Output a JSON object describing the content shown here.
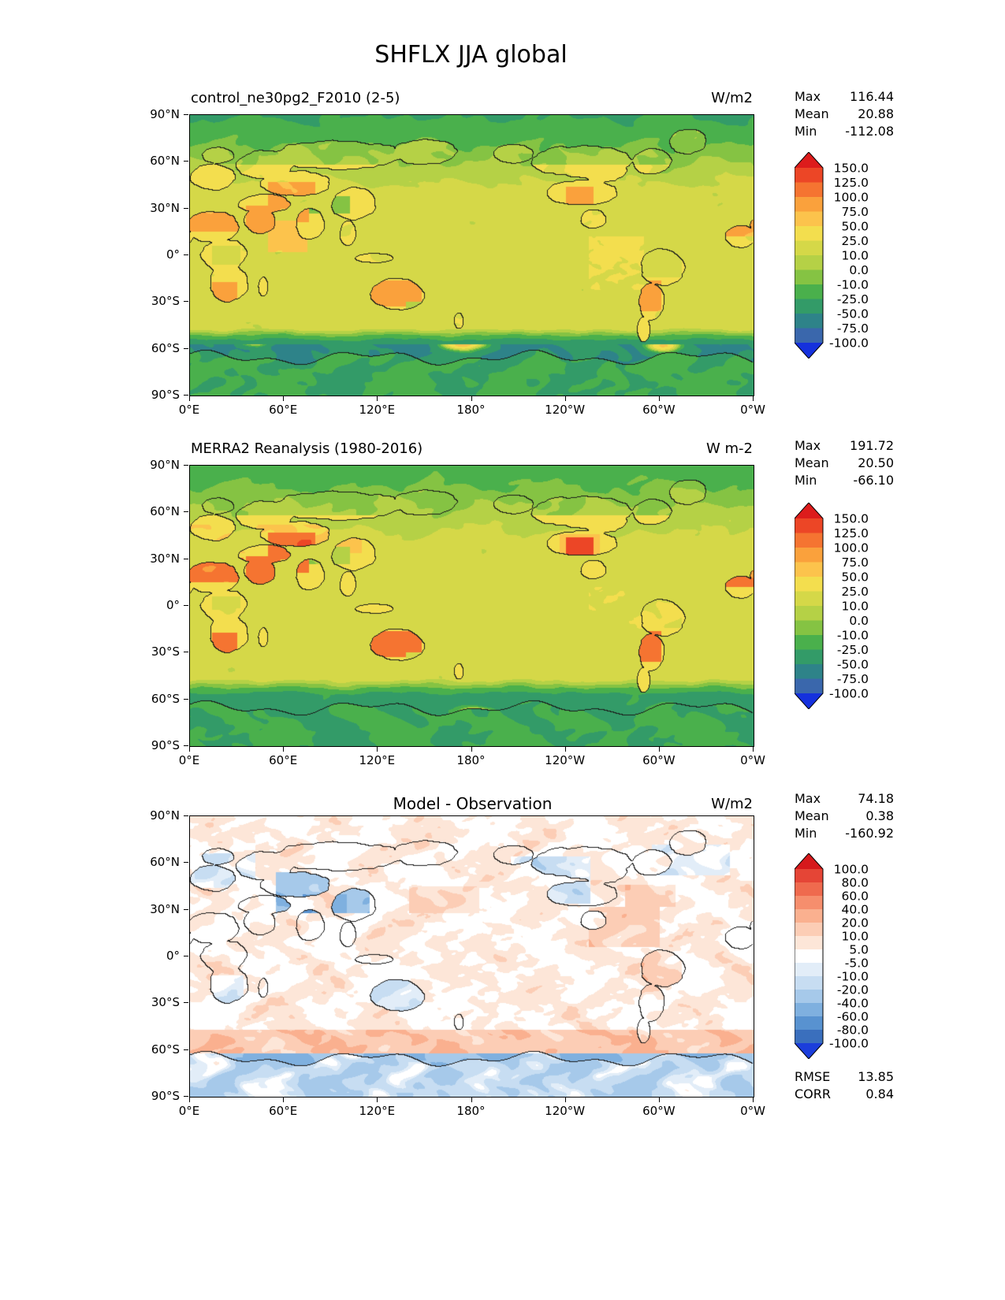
{
  "figure_title": "SHFLX JJA global",
  "axes": {
    "x_ticks": [
      "0°E",
      "60°E",
      "120°E",
      "180°",
      "120°W",
      "60°W",
      "0°W"
    ],
    "y_ticks": [
      "90°N",
      "60°N",
      "30°N",
      "0°",
      "30°S",
      "60°S",
      "90°S"
    ]
  },
  "panels": [
    {
      "id": "model",
      "title": "control_ne30pg2_F2010 (2-5)",
      "units": "W/m2",
      "stats": [
        {
          "label": "Max",
          "value": "116.44"
        },
        {
          "label": "Mean",
          "value": "20.88"
        },
        {
          "label": "Min",
          "value": "-112.08"
        }
      ],
      "colorbar": {
        "tick_labels": [
          "150.0",
          "125.0",
          "100.0",
          "75.0",
          "50.0",
          "25.0",
          "10.0",
          "0.0",
          "-10.0",
          "-25.0",
          "-50.0",
          "-75.0",
          "-100.0"
        ],
        "colors": [
          "#dd1c1c",
          "#ec4626",
          "#f57431",
          "#faa13c",
          "#fcc34c",
          "#f3de4e",
          "#d5d848",
          "#b5d146",
          "#85c343",
          "#4ab04c",
          "#339b68",
          "#2e8389",
          "#3a67ac",
          "#1531dd"
        ]
      }
    },
    {
      "id": "obs",
      "title": "MERRA2 Reanalysis (1980-2016)",
      "units": "W m-2",
      "stats": [
        {
          "label": "Max",
          "value": "191.72"
        },
        {
          "label": "Mean",
          "value": "20.50"
        },
        {
          "label": "Min",
          "value": "-66.10"
        }
      ],
      "colorbar": {
        "tick_labels": [
          "150.0",
          "125.0",
          "100.0",
          "75.0",
          "50.0",
          "25.0",
          "10.0",
          "0.0",
          "-10.0",
          "-25.0",
          "-50.0",
          "-75.0",
          "-100.0"
        ],
        "colors": [
          "#dd1c1c",
          "#ec4626",
          "#f57431",
          "#faa13c",
          "#fcc34c",
          "#f3de4e",
          "#d5d848",
          "#b5d146",
          "#85c343",
          "#4ab04c",
          "#339b68",
          "#2e8389",
          "#3a67ac",
          "#1531dd"
        ]
      }
    },
    {
      "id": "diff",
      "title": "Model - Observation",
      "units": "W/m2",
      "stats": [
        {
          "label": "Max",
          "value": "74.18"
        },
        {
          "label": "Mean",
          "value": "0.38"
        },
        {
          "label": "Min",
          "value": "-160.92"
        }
      ],
      "extra_stats": [
        {
          "label": "RMSE",
          "value": "13.85"
        },
        {
          "label": "CORR",
          "value": "0.84"
        }
      ],
      "colorbar": {
        "tick_labels": [
          "100.0",
          "80.0",
          "60.0",
          "40.0",
          "20.0",
          "10.0",
          "5.0",
          "-5.0",
          "-10.0",
          "-20.0",
          "-40.0",
          "-60.0",
          "-80.0",
          "-100.0"
        ],
        "colors": [
          "#d6191c",
          "#e54536",
          "#ef6a4e",
          "#f68e6d",
          "#fab08f",
          "#fccdb5",
          "#fde6d8",
          "#ffffff",
          "#e2edf8",
          "#c7ddf2",
          "#a6c9ea",
          "#7fb0df",
          "#5892d0",
          "#3a6fbd",
          "#1b3edb"
        ]
      }
    }
  ],
  "chart_data": [
    {
      "type": "heatmap",
      "variable": "SHFLX",
      "season": "JJA",
      "region": "global",
      "title": "control_ne30pg2_F2010 (2-5)",
      "units": "W/m2",
      "projection": "equirectangular",
      "lon_range": [
        0,
        360
      ],
      "lat_range": [
        -90,
        90
      ],
      "x_ticks": [
        "0°E",
        "60°E",
        "120°E",
        "180°",
        "120°W",
        "60°W",
        "0°W"
      ],
      "y_ticks": [
        "90°N",
        "60°N",
        "30°N",
        "0°",
        "30°S",
        "60°S",
        "90°S"
      ],
      "stats": {
        "max": 116.44,
        "mean": 20.88,
        "min": -112.08
      },
      "levels": [
        150,
        125,
        100,
        75,
        50,
        25,
        10,
        0,
        -10,
        -25,
        -50,
        -75,
        -100
      ],
      "pattern": "Olive-yellow oceans (10-25), orange deserts (Sahara, Arabia, central Asia, Australia, SW North America, Andes ~50-100), green high-latitude land and NH oceans (0 to -25), green Tibet patch, dark teal Southern Ocean band south of 55S (-50 to -75) with scattered orange spots near 55S, green Antarctica"
    },
    {
      "type": "heatmap",
      "variable": "SHFLX",
      "season": "JJA",
      "region": "global",
      "title": "MERRA2 Reanalysis (1980-2016)",
      "units": "W m-2",
      "projection": "equirectangular",
      "lon_range": [
        0,
        360
      ],
      "lat_range": [
        -90,
        90
      ],
      "x_ticks": [
        "0°E",
        "60°E",
        "120°E",
        "180°",
        "120°W",
        "60°W",
        "0°W"
      ],
      "y_ticks": [
        "90°N",
        "60°N",
        "30°N",
        "0°",
        "30°S",
        "60°S",
        "90°S"
      ],
      "stats": {
        "max": 191.72,
        "mean": 20.5,
        "min": -66.1
      },
      "levels": [
        150,
        125,
        100,
        75,
        50,
        25,
        10,
        0,
        -10,
        -25,
        -50,
        -75,
        -100
      ],
      "pattern": "Similar to model but warmer land: deep orange-red deserts (100-150) over Sahara, Middle East, central Asia, western North America; olive oceans; teal-green circumpolar band south of 57S with small orange spots at the Antarctic coast"
    },
    {
      "type": "heatmap",
      "variable": "SHFLX difference",
      "season": "JJA",
      "region": "global",
      "title": "Model - Observation",
      "units": "W/m2",
      "projection": "equirectangular",
      "lon_range": [
        0,
        360
      ],
      "lat_range": [
        -90,
        90
      ],
      "x_ticks": [
        "0°E",
        "60°E",
        "120°E",
        "180°",
        "120°W",
        "60°W",
        "0°W"
      ],
      "y_ticks": [
        "90°N",
        "60°N",
        "30°N",
        "0°",
        "30°S",
        "60°S",
        "90°S"
      ],
      "stats": {
        "max": 74.18,
        "mean": 0.38,
        "min": -160.92
      },
      "rmse": 13.85,
      "corr": 0.84,
      "levels": [
        100,
        80,
        60,
        40,
        20,
        10,
        5,
        -5,
        -10,
        -20,
        -40,
        -60,
        -80,
        -100
      ],
      "pattern": "Mostly white/faint pink oceans; strong blue bias over central Asia/Tibet (-40 to -100); light blue over Europe, western North America, Australia, southern Africa; pink/red over Amazon, Caribbean and Gulf Stream; salmon ring 48S-62S; blue band along Antarctic coast and patchy blue Antarctica"
    }
  ]
}
